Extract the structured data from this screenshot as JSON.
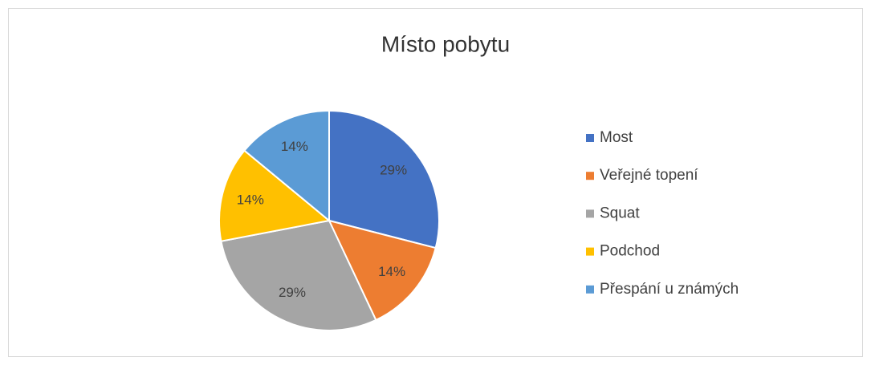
{
  "chart_data": {
    "type": "pie",
    "title": "Místo pobytu",
    "categories": [
      "Most",
      "Veřejné topení",
      "Squat",
      "Podchod",
      "Přespání u známých"
    ],
    "values": [
      29,
      14,
      29,
      14,
      14
    ],
    "value_labels": [
      "29%",
      "14%",
      "29%",
      "14%",
      "14%"
    ],
    "colors": [
      "#4472c4",
      "#ed7d31",
      "#a5a5a5",
      "#ffc000",
      "#5b9bd5"
    ],
    "legend": "right"
  }
}
